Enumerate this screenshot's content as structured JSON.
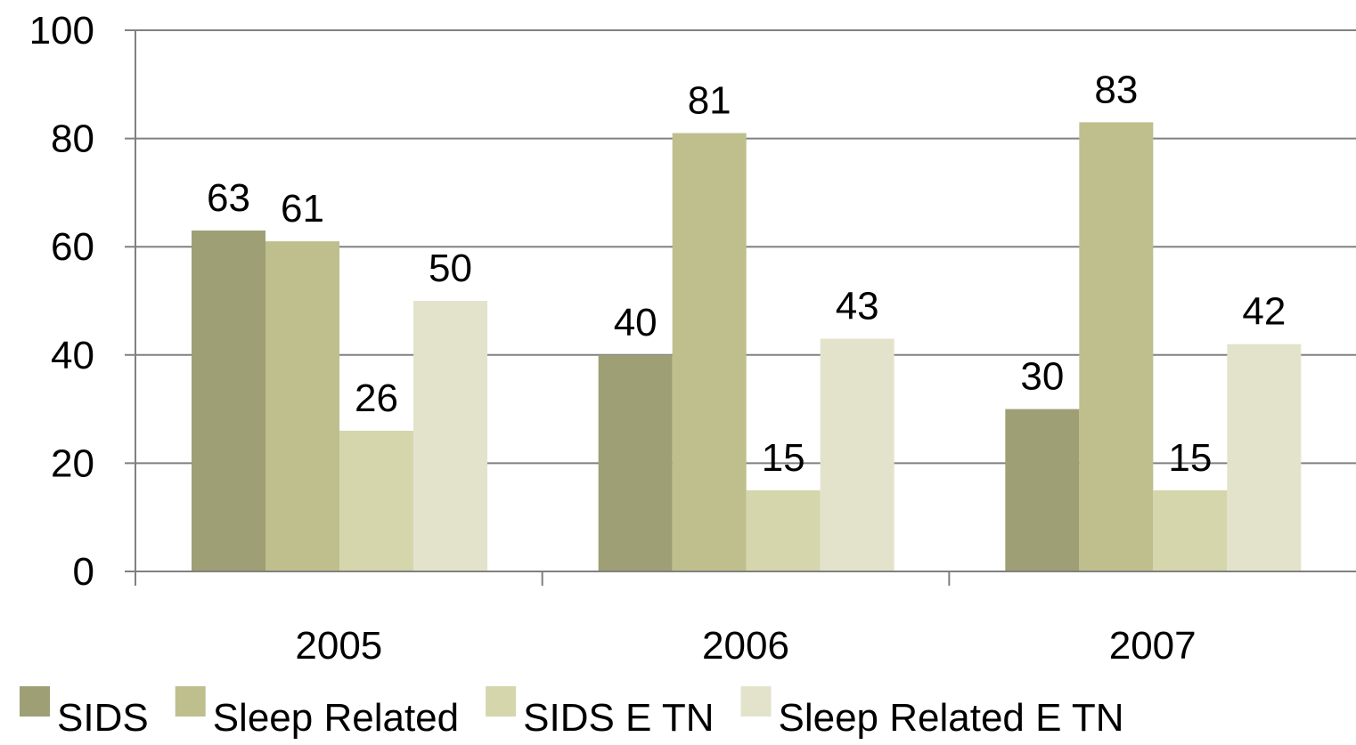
{
  "chart_data": {
    "type": "bar",
    "title": "",
    "xlabel": "",
    "ylabel": "",
    "categories": [
      "2005",
      "2006",
      "2007"
    ],
    "ylim": [
      0,
      100
    ],
    "yticks": [
      0,
      20,
      40,
      60,
      80,
      100
    ],
    "grid": true,
    "legend_position": "bottom",
    "series": [
      {
        "name": "SIDS",
        "values": [
          63,
          40,
          30
        ],
        "color": "#9e9f75"
      },
      {
        "name": "Sleep Related",
        "values": [
          61,
          81,
          83
        ],
        "color": "#bebf8d"
      },
      {
        "name": "SIDS E TN",
        "values": [
          26,
          15,
          15
        ],
        "color": "#d5d6ac"
      },
      {
        "name": "Sleep Related E TN",
        "values": [
          50,
          43,
          42
        ],
        "color": "#e3e3cc"
      }
    ]
  }
}
